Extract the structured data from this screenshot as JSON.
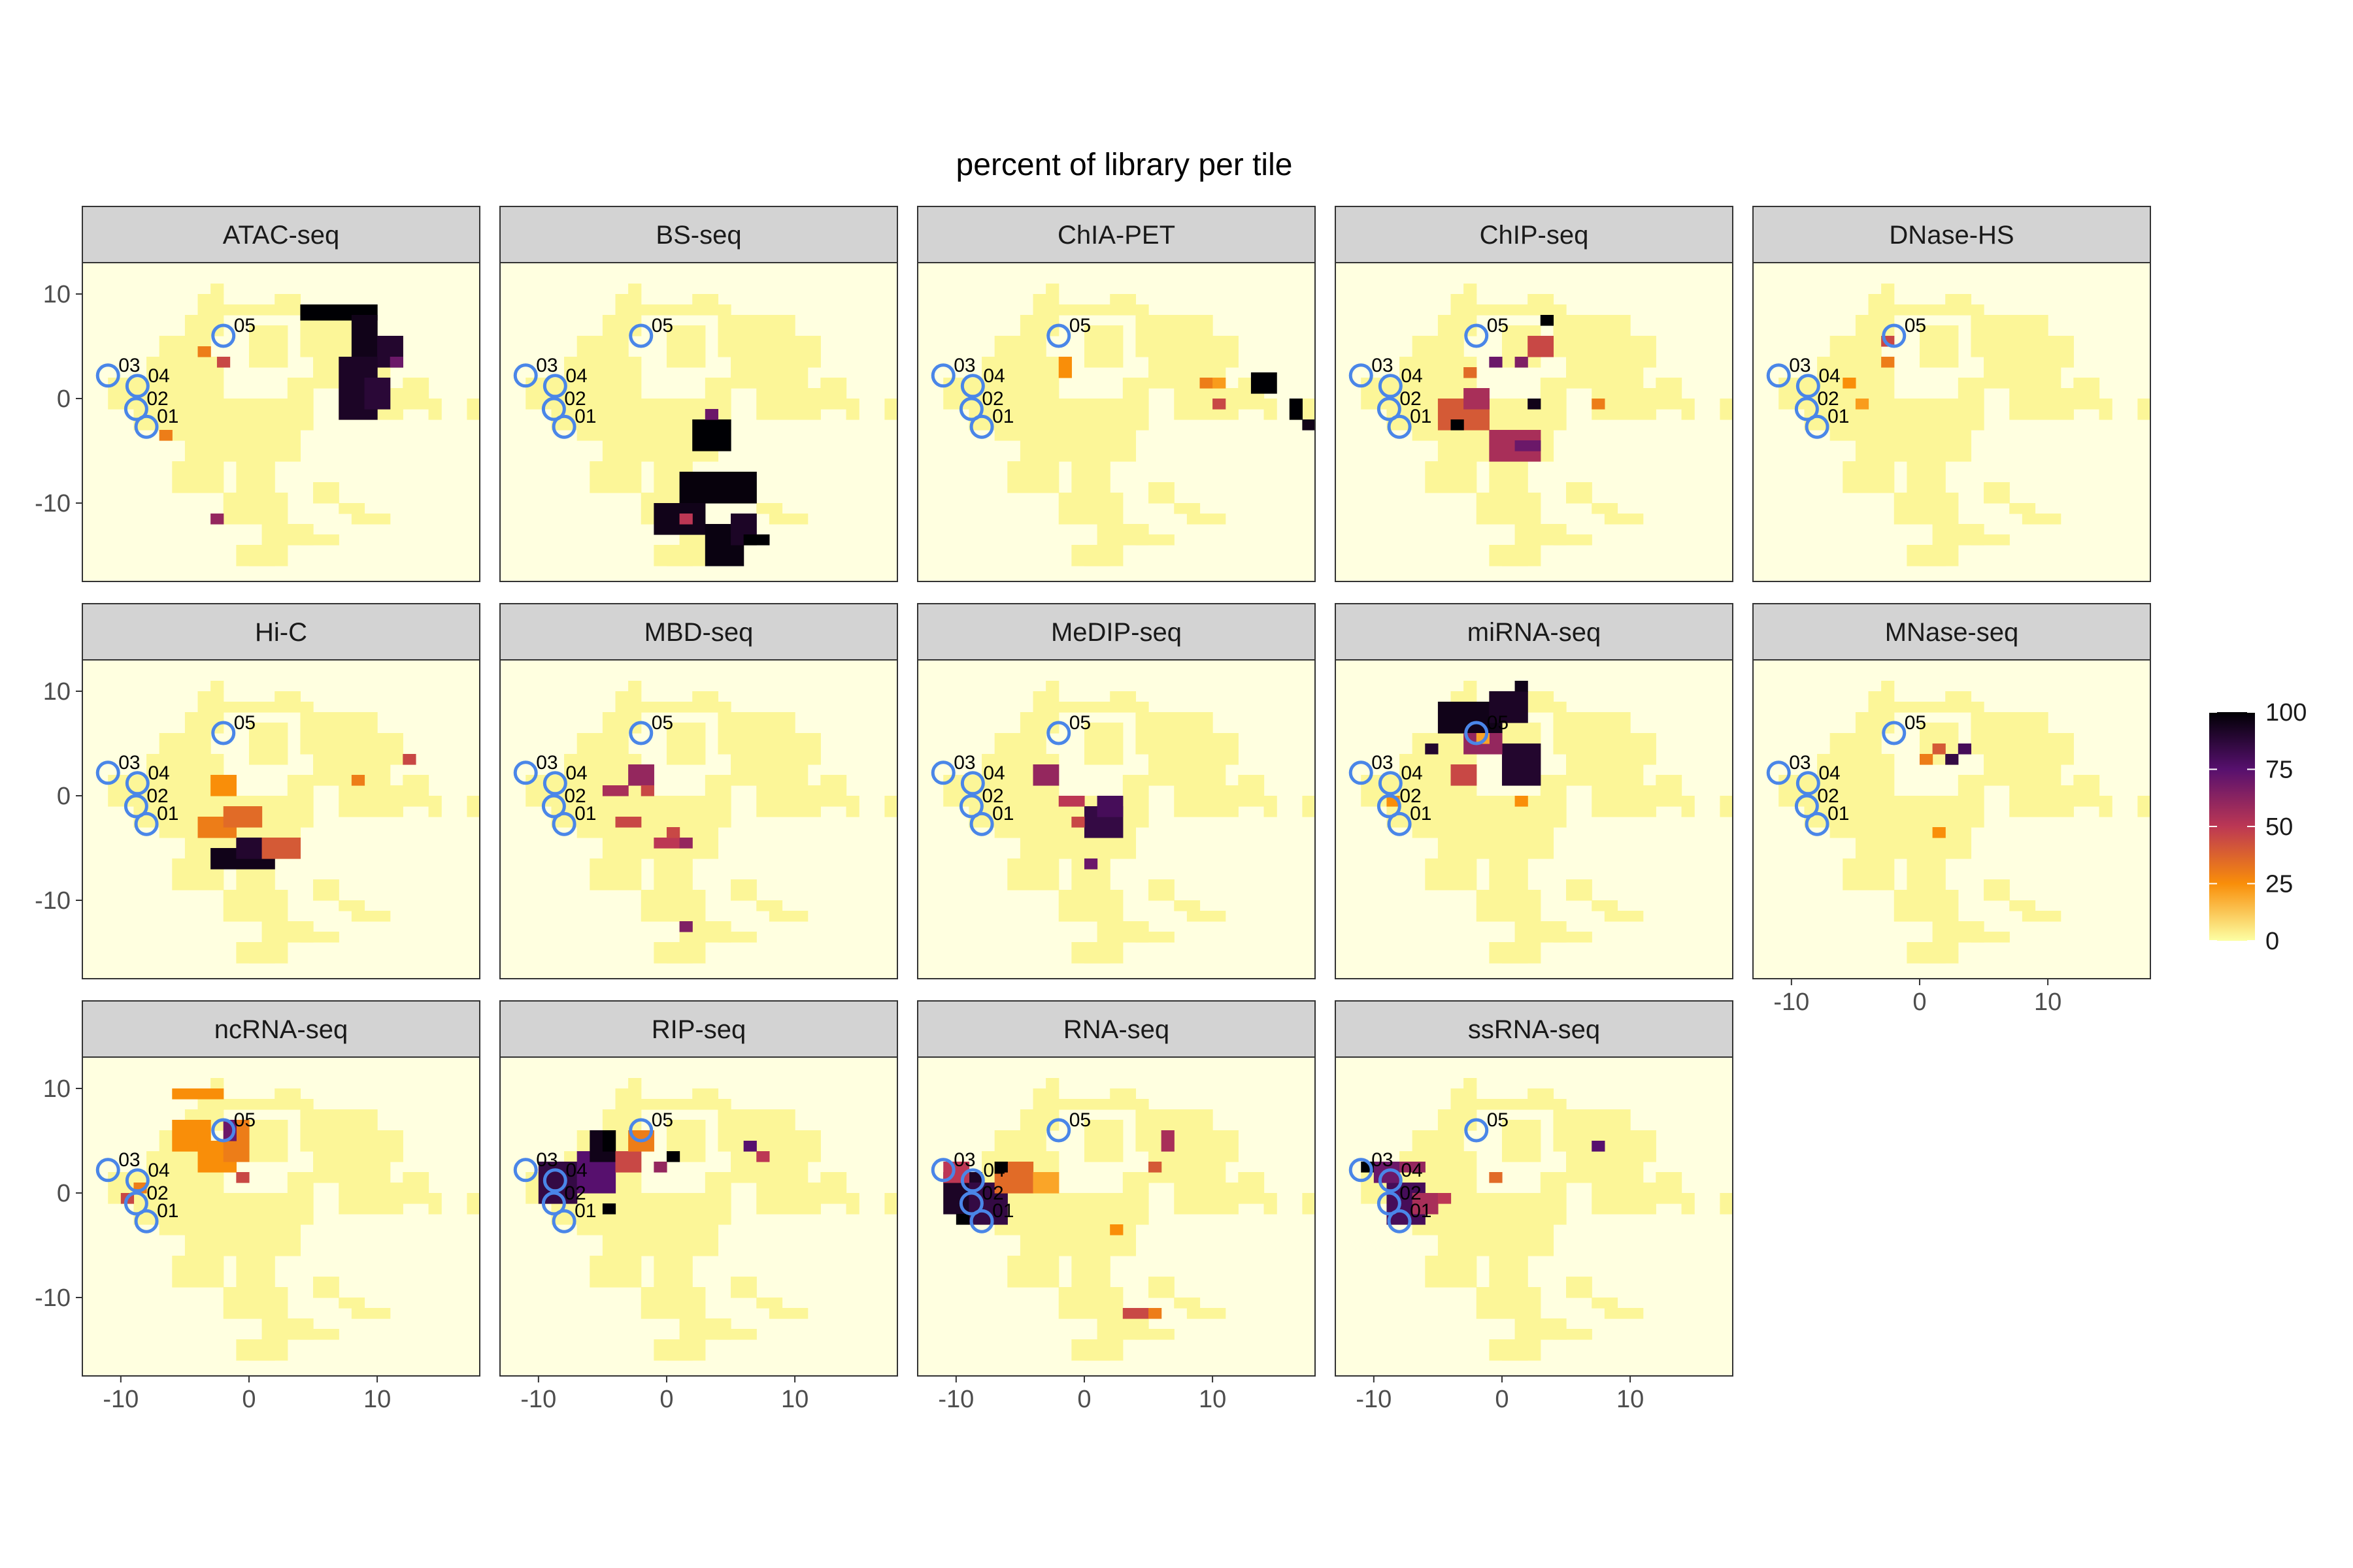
{
  "chart_data": {
    "type": "heatmap",
    "title": "percent of library per tile",
    "xlabel": "",
    "ylabel": "",
    "xlim": [
      -13,
      18
    ],
    "ylim": [
      -17.5,
      13
    ],
    "x_ticks": [
      -10,
      0,
      10
    ],
    "y_ticks": [
      10,
      0,
      -10
    ],
    "x_tick_labels": [
      "-10",
      "0",
      "10"
    ],
    "y_tick_labels": [
      "10",
      "0",
      "-10"
    ],
    "colorbar": {
      "min": 0,
      "max": 100,
      "ticks": [
        100,
        75,
        50,
        25,
        0
      ],
      "tick_labels": [
        "100",
        "75",
        "50",
        "25",
        "0"
      ],
      "palette": "inferno (reversed)",
      "colors": [
        "#fcffa4",
        "#f98e09",
        "#bc3754",
        "#57106e",
        "#000004"
      ]
    },
    "panel_background": "#ffffe0",
    "strip_fill": "#d3d3d3",
    "marker_color": "#4a86e8",
    "markers": [
      {
        "label": "01",
        "x": -8,
        "y": -2.7
      },
      {
        "label": "02",
        "x": -8.8,
        "y": -1
      },
      {
        "label": "03",
        "x": -11,
        "y": 2.2
      },
      {
        "label": "04",
        "x": -8.7,
        "y": 1.2
      },
      {
        "label": "05",
        "x": -2,
        "y": 6
      }
    ],
    "base_tile_value": 2,
    "panels": [
      {
        "name": "ATAC-seq",
        "hot": [
          {
            "x": 4,
            "y": 7.5,
            "w": 6,
            "h": 1.5,
            "v": 100
          },
          {
            "x": 8,
            "y": 4,
            "w": 2,
            "h": 4,
            "v": 95
          },
          {
            "x": 10,
            "y": 3,
            "w": 2,
            "h": 3,
            "v": 90
          },
          {
            "x": 7,
            "y": -2,
            "w": 3,
            "h": 6,
            "v": 92
          },
          {
            "x": 9,
            "y": -1,
            "w": 2,
            "h": 3,
            "v": 88
          },
          {
            "x": 11,
            "y": 3,
            "w": 1,
            "h": 1,
            "v": 70
          },
          {
            "x": -2.5,
            "y": 3,
            "w": 1,
            "h": 1,
            "v": 45
          },
          {
            "x": -4,
            "y": 4,
            "w": 1,
            "h": 1,
            "v": 30
          },
          {
            "x": -3,
            "y": -12,
            "w": 1,
            "h": 1,
            "v": 60
          },
          {
            "x": -7,
            "y": -4,
            "w": 1,
            "h": 1,
            "v": 30
          }
        ]
      },
      {
        "name": "BS-seq",
        "hot": [
          {
            "x": 2,
            "y": -5,
            "w": 3,
            "h": 3,
            "v": 100
          },
          {
            "x": 1,
            "y": -10,
            "w": 6,
            "h": 3,
            "v": 98
          },
          {
            "x": -1,
            "y": -13,
            "w": 4,
            "h": 3,
            "v": 95
          },
          {
            "x": 3,
            "y": -16,
            "w": 3,
            "h": 4,
            "v": 97
          },
          {
            "x": 5,
            "y": -14,
            "w": 2,
            "h": 3,
            "v": 92
          },
          {
            "x": 6,
            "y": -14,
            "w": 2,
            "h": 1,
            "v": 100
          },
          {
            "x": 3,
            "y": -2,
            "w": 1,
            "h": 1,
            "v": 70
          },
          {
            "x": 1,
            "y": -12,
            "w": 1,
            "h": 1,
            "v": 50
          }
        ]
      },
      {
        "name": "ChIA-PET",
        "hot": [
          {
            "x": 13,
            "y": 0.5,
            "w": 2,
            "h": 2,
            "v": 100
          },
          {
            "x": 16,
            "y": -2,
            "w": 1,
            "h": 2,
            "v": 100
          },
          {
            "x": 17,
            "y": -3,
            "w": 1,
            "h": 1,
            "v": 95
          },
          {
            "x": -2,
            "y": 2,
            "w": 1,
            "h": 2,
            "v": 25
          },
          {
            "x": 9,
            "y": 1,
            "w": 1,
            "h": 1,
            "v": 30
          },
          {
            "x": 10,
            "y": 1,
            "w": 1,
            "h": 1,
            "v": 22
          },
          {
            "x": 10,
            "y": -1,
            "w": 1,
            "h": 1,
            "v": 45
          }
        ]
      },
      {
        "name": "ChIP-seq",
        "hot": [
          {
            "x": -5,
            "y": -3,
            "w": 4,
            "h": 3,
            "v": 40
          },
          {
            "x": -3,
            "y": -1,
            "w": 2,
            "h": 2,
            "v": 55
          },
          {
            "x": -1,
            "y": -6,
            "w": 4,
            "h": 3,
            "v": 55
          },
          {
            "x": 1,
            "y": -5,
            "w": 2,
            "h": 1,
            "v": 70
          },
          {
            "x": -1,
            "y": 3,
            "w": 1,
            "h": 1,
            "v": 70
          },
          {
            "x": 1,
            "y": 3,
            "w": 1,
            "h": 1,
            "v": 65
          },
          {
            "x": 2,
            "y": 4,
            "w": 2,
            "h": 2,
            "v": 45
          },
          {
            "x": 3,
            "y": 7,
            "w": 1,
            "h": 1,
            "v": 100
          },
          {
            "x": -3,
            "y": 2,
            "w": 1,
            "h": 1,
            "v": 35
          },
          {
            "x": 7,
            "y": -1,
            "w": 1,
            "h": 1,
            "v": 30
          },
          {
            "x": 2,
            "y": -1,
            "w": 1,
            "h": 1,
            "v": 95
          },
          {
            "x": -4,
            "y": -3,
            "w": 1,
            "h": 1,
            "v": 100
          }
        ]
      },
      {
        "name": "DNase-HS",
        "hot": [
          {
            "x": -3,
            "y": 5,
            "w": 1,
            "h": 1,
            "v": 45
          },
          {
            "x": -3,
            "y": 3,
            "w": 1,
            "h": 1,
            "v": 30
          },
          {
            "x": -6,
            "y": 1,
            "w": 1,
            "h": 1,
            "v": 25
          },
          {
            "x": -5,
            "y": -1,
            "w": 1,
            "h": 1,
            "v": 22
          }
        ]
      },
      {
        "name": "Hi-C",
        "hot": [
          {
            "x": -3,
            "y": -7,
            "w": 5,
            "h": 2,
            "v": 95
          },
          {
            "x": -1,
            "y": -6,
            "w": 3,
            "h": 2,
            "v": 90
          },
          {
            "x": -4,
            "y": -4,
            "w": 3,
            "h": 2,
            "v": 30
          },
          {
            "x": -2,
            "y": -3,
            "w": 3,
            "h": 2,
            "v": 35
          },
          {
            "x": 1,
            "y": -6,
            "w": 3,
            "h": 2,
            "v": 40
          },
          {
            "x": -3,
            "y": 0,
            "w": 2,
            "h": 2,
            "v": 25
          },
          {
            "x": 12,
            "y": 3,
            "w": 1,
            "h": 1,
            "v": 45
          },
          {
            "x": 8,
            "y": 1,
            "w": 1,
            "h": 1,
            "v": 30
          }
        ]
      },
      {
        "name": "MBD-seq",
        "hot": [
          {
            "x": -5,
            "y": 0,
            "w": 2,
            "h": 1,
            "v": 55
          },
          {
            "x": -3,
            "y": 1,
            "w": 2,
            "h": 2,
            "v": 60
          },
          {
            "x": -4,
            "y": -3,
            "w": 2,
            "h": 1,
            "v": 45
          },
          {
            "x": -1,
            "y": -5,
            "w": 2,
            "h": 1,
            "v": 50
          },
          {
            "x": 1,
            "y": -5,
            "w": 1,
            "h": 1,
            "v": 60
          },
          {
            "x": 0,
            "y": -4,
            "w": 1,
            "h": 1,
            "v": 45
          },
          {
            "x": 1,
            "y": -13,
            "w": 1,
            "h": 1,
            "v": 65
          },
          {
            "x": -2,
            "y": 0,
            "w": 1,
            "h": 1,
            "v": 45
          }
        ]
      },
      {
        "name": "MeDIP-seq",
        "hot": [
          {
            "x": -4,
            "y": 1,
            "w": 2,
            "h": 2,
            "v": 60
          },
          {
            "x": 0,
            "y": -4,
            "w": 3,
            "h": 3,
            "v": 85
          },
          {
            "x": 1,
            "y": -2,
            "w": 2,
            "h": 2,
            "v": 80
          },
          {
            "x": -2,
            "y": -1,
            "w": 2,
            "h": 1,
            "v": 50
          },
          {
            "x": 0,
            "y": -7,
            "w": 1,
            "h": 1,
            "v": 70
          },
          {
            "x": -1,
            "y": -3,
            "w": 1,
            "h": 1,
            "v": 45
          }
        ]
      },
      {
        "name": "miRNA-seq",
        "hot": [
          {
            "x": -5,
            "y": 6,
            "w": 5,
            "h": 3,
            "v": 95
          },
          {
            "x": -1,
            "y": 7,
            "w": 3,
            "h": 3,
            "v": 92
          },
          {
            "x": 0,
            "y": 1,
            "w": 3,
            "h": 4,
            "v": 90
          },
          {
            "x": -3,
            "y": 4,
            "w": 3,
            "h": 2,
            "v": 60
          },
          {
            "x": -4,
            "y": 1,
            "w": 2,
            "h": 2,
            "v": 45
          },
          {
            "x": -6,
            "y": 4,
            "w": 1,
            "h": 1,
            "v": 90
          },
          {
            "x": 1,
            "y": 10,
            "w": 1,
            "h": 1,
            "v": 95
          },
          {
            "x": -2,
            "y": 5,
            "w": 1,
            "h": 1,
            "v": 20
          },
          {
            "x": -9,
            "y": -1,
            "w": 1,
            "h": 1,
            "v": 25
          },
          {
            "x": 1,
            "y": -1,
            "w": 1,
            "h": 1,
            "v": 25
          }
        ]
      },
      {
        "name": "MNase-seq",
        "hot": [
          {
            "x": 3,
            "y": 4,
            "w": 1,
            "h": 1,
            "v": 80
          },
          {
            "x": 2,
            "y": 3,
            "w": 1,
            "h": 1,
            "v": 85
          },
          {
            "x": 1,
            "y": 4,
            "w": 1,
            "h": 1,
            "v": 40
          },
          {
            "x": 0,
            "y": 3,
            "w": 1,
            "h": 1,
            "v": 30
          },
          {
            "x": 1,
            "y": -4,
            "w": 1,
            "h": 1,
            "v": 25
          }
        ]
      },
      {
        "name": "ncRNA-seq",
        "hot": [
          {
            "x": -6,
            "y": 9,
            "w": 4,
            "h": 1,
            "v": 25
          },
          {
            "x": -6,
            "y": 4,
            "w": 3,
            "h": 3,
            "v": 25
          },
          {
            "x": -4,
            "y": 2,
            "w": 3,
            "h": 3,
            "v": 25
          },
          {
            "x": -2,
            "y": 3,
            "w": 2,
            "h": 4,
            "v": 30
          },
          {
            "x": -2,
            "y": 5,
            "w": 1,
            "h": 2,
            "v": 70
          },
          {
            "x": -1,
            "y": 1,
            "w": 1,
            "h": 1,
            "v": 45
          },
          {
            "x": -10,
            "y": -1,
            "w": 1,
            "h": 1,
            "v": 45
          },
          {
            "x": -9,
            "y": 0,
            "w": 1,
            "h": 1,
            "v": 30
          }
        ]
      },
      {
        "name": "RIP-seq",
        "hot": [
          {
            "x": -10,
            "y": -1,
            "w": 3,
            "h": 4,
            "v": 85
          },
          {
            "x": -7,
            "y": 0,
            "w": 3,
            "h": 4,
            "v": 75
          },
          {
            "x": -6,
            "y": 3,
            "w": 2,
            "h": 3,
            "v": 95
          },
          {
            "x": -5,
            "y": 4,
            "w": 1,
            "h": 2,
            "v": 100
          },
          {
            "x": -4,
            "y": 2,
            "w": 2,
            "h": 2,
            "v": 45
          },
          {
            "x": -3,
            "y": 4,
            "w": 2,
            "h": 2,
            "v": 30
          },
          {
            "x": -5,
            "y": -2,
            "w": 1,
            "h": 1,
            "v": 100
          },
          {
            "x": 0,
            "y": 3,
            "w": 1,
            "h": 1,
            "v": 100
          },
          {
            "x": -1,
            "y": 2,
            "w": 1,
            "h": 1,
            "v": 60
          },
          {
            "x": 6,
            "y": 4,
            "w": 1,
            "h": 1,
            "v": 75
          },
          {
            "x": 7,
            "y": 3,
            "w": 1,
            "h": 1,
            "v": 50
          }
        ]
      },
      {
        "name": "RNA-seq",
        "hot": [
          {
            "x": -11,
            "y": -2,
            "w": 3,
            "h": 4,
            "v": 92
          },
          {
            "x": -9,
            "y": -3,
            "w": 3,
            "h": 4,
            "v": 85
          },
          {
            "x": -11,
            "y": 1,
            "w": 2,
            "h": 2,
            "v": 50
          },
          {
            "x": -7,
            "y": 0,
            "w": 3,
            "h": 3,
            "v": 35
          },
          {
            "x": -4,
            "y": 0,
            "w": 2,
            "h": 2,
            "v": 20
          },
          {
            "x": -7,
            "y": 2,
            "w": 1,
            "h": 1,
            "v": 100
          },
          {
            "x": -10,
            "y": -3,
            "w": 1,
            "h": 1,
            "v": 100
          },
          {
            "x": 6,
            "y": 4,
            "w": 1,
            "h": 2,
            "v": 55
          },
          {
            "x": 5,
            "y": 2,
            "w": 1,
            "h": 1,
            "v": 40
          },
          {
            "x": 3,
            "y": -12,
            "w": 2,
            "h": 1,
            "v": 45
          },
          {
            "x": 5,
            "y": -12,
            "w": 1,
            "h": 1,
            "v": 30
          },
          {
            "x": 2,
            "y": -4,
            "w": 1,
            "h": 1,
            "v": 25
          }
        ]
      },
      {
        "name": "ssRNA-seq",
        "hot": [
          {
            "x": -11,
            "y": 2,
            "w": 1,
            "h": 1,
            "v": 100
          },
          {
            "x": -9,
            "y": -3,
            "w": 3,
            "h": 4,
            "v": 80
          },
          {
            "x": -10,
            "y": 1,
            "w": 2,
            "h": 2,
            "v": 70
          },
          {
            "x": -7,
            "y": -2,
            "w": 2,
            "h": 2,
            "v": 55
          },
          {
            "x": -8,
            "y": 2,
            "w": 2,
            "h": 1,
            "v": 60
          },
          {
            "x": -5,
            "y": -1,
            "w": 1,
            "h": 1,
            "v": 50
          },
          {
            "x": -1,
            "y": 1,
            "w": 1,
            "h": 1,
            "v": 35
          },
          {
            "x": 7,
            "y": 4,
            "w": 1,
            "h": 1,
            "v": 75
          }
        ]
      }
    ],
    "base_mask": [
      {
        "x": -8,
        "y": 0,
        "w": 6,
        "h": 4
      },
      {
        "x": -7,
        "y": 4,
        "w": 4,
        "h": 2
      },
      {
        "x": -5,
        "y": 6,
        "w": 3,
        "h": 2
      },
      {
        "x": -4,
        "y": 8,
        "w": 2,
        "h": 2
      },
      {
        "x": -2,
        "y": 8,
        "w": 7,
        "h": 1
      },
      {
        "x": 2,
        "y": 9,
        "w": 2,
        "h": 1
      },
      {
        "x": 4,
        "y": 4,
        "w": 6,
        "h": 4
      },
      {
        "x": 5,
        "y": 1,
        "w": 6,
        "h": 3
      },
      {
        "x": 7,
        "y": -2,
        "w": 5,
        "h": 3
      },
      {
        "x": 10,
        "y": 3,
        "w": 2,
        "h": 3
      },
      {
        "x": 12,
        "y": -1,
        "w": 2,
        "h": 3
      },
      {
        "x": 14,
        "y": -2,
        "w": 1,
        "h": 2
      },
      {
        "x": -11,
        "y": -1,
        "w": 4,
        "h": 3
      },
      {
        "x": -9,
        "y": -3,
        "w": 6,
        "h": 3
      },
      {
        "x": -5,
        "y": -3,
        "w": 10,
        "h": 3
      },
      {
        "x": -3,
        "y": -6,
        "w": 7,
        "h": 3
      },
      {
        "x": -1,
        "y": -9,
        "w": 3,
        "h": 3
      },
      {
        "x": -2,
        "y": -12,
        "w": 5,
        "h": 3
      },
      {
        "x": 1,
        "y": -14,
        "w": 4,
        "h": 2
      },
      {
        "x": -1,
        "y": -16,
        "w": 4,
        "h": 2
      },
      {
        "x": 4,
        "y": -14,
        "w": 3,
        "h": 1
      },
      {
        "x": -6,
        "y": -9,
        "w": 4,
        "h": 3
      },
      {
        "x": -5,
        "y": -6,
        "w": 2,
        "h": 3
      },
      {
        "x": 5,
        "y": -10,
        "w": 2,
        "h": 2
      },
      {
        "x": 8,
        "y": -12,
        "w": 3,
        "h": 1
      },
      {
        "x": 7,
        "y": -11,
        "w": 2,
        "h": 1
      },
      {
        "x": -7,
        "y": -4,
        "w": 2,
        "h": 1
      },
      {
        "x": 0,
        "y": 3,
        "w": 3,
        "h": 4
      },
      {
        "x": 3,
        "y": 0,
        "w": 2,
        "h": 2
      },
      {
        "x": 17,
        "y": -2,
        "w": 1,
        "h": 2
      },
      {
        "x": 0,
        "y": -16,
        "w": 2,
        "h": 1
      },
      {
        "x": -3,
        "y": 10,
        "w": 1,
        "h": 1
      }
    ]
  }
}
